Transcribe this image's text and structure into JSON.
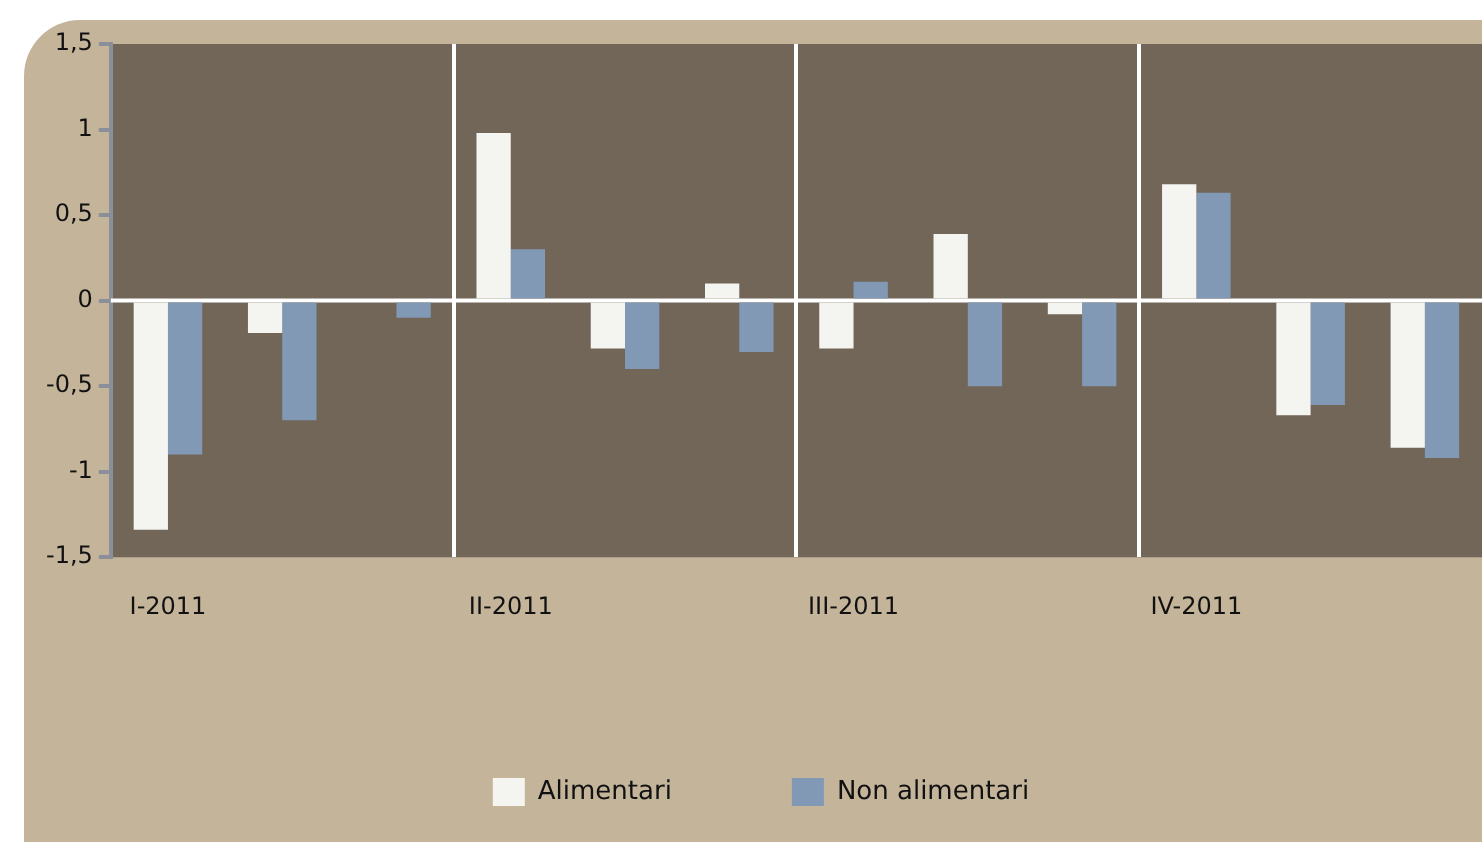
{
  "chart_data": {
    "type": "bar",
    "categories": [
      "I-2011",
      null,
      null,
      "II-2011",
      null,
      null,
      "III-2011",
      null,
      null,
      "IV-2011",
      null,
      null
    ],
    "series": [
      {
        "name": "Alimentari",
        "color": "#f4f4f0",
        "values": [
          -1.34,
          -0.19,
          null,
          0.98,
          -0.28,
          0.1,
          -0.28,
          0.39,
          -0.08,
          0.68,
          -0.67,
          -0.86
        ]
      },
      {
        "name": "Non alimentari",
        "color": "#8299b5",
        "values": [
          -0.9,
          -0.7,
          -0.1,
          0.3,
          -0.4,
          -0.3,
          0.11,
          -0.5,
          -0.5,
          0.63,
          -0.61,
          -0.92
        ]
      }
    ],
    "ylim": [
      -1.5,
      1.5
    ],
    "yticks": [
      {
        "value": -1.5,
        "label": "-1,5"
      },
      -1,
      {
        "value": -0.5,
        "label": "-0,5"
      },
      0,
      {
        "value": 0.5,
        "label": "0,5"
      },
      1,
      {
        "value": 1.5,
        "label": "1,5"
      }
    ],
    "ref_lines": [
      {
        "axis": "y",
        "value": 0,
        "color": "#ffffff"
      }
    ],
    "grid": "x",
    "legend": "bottom"
  }
}
